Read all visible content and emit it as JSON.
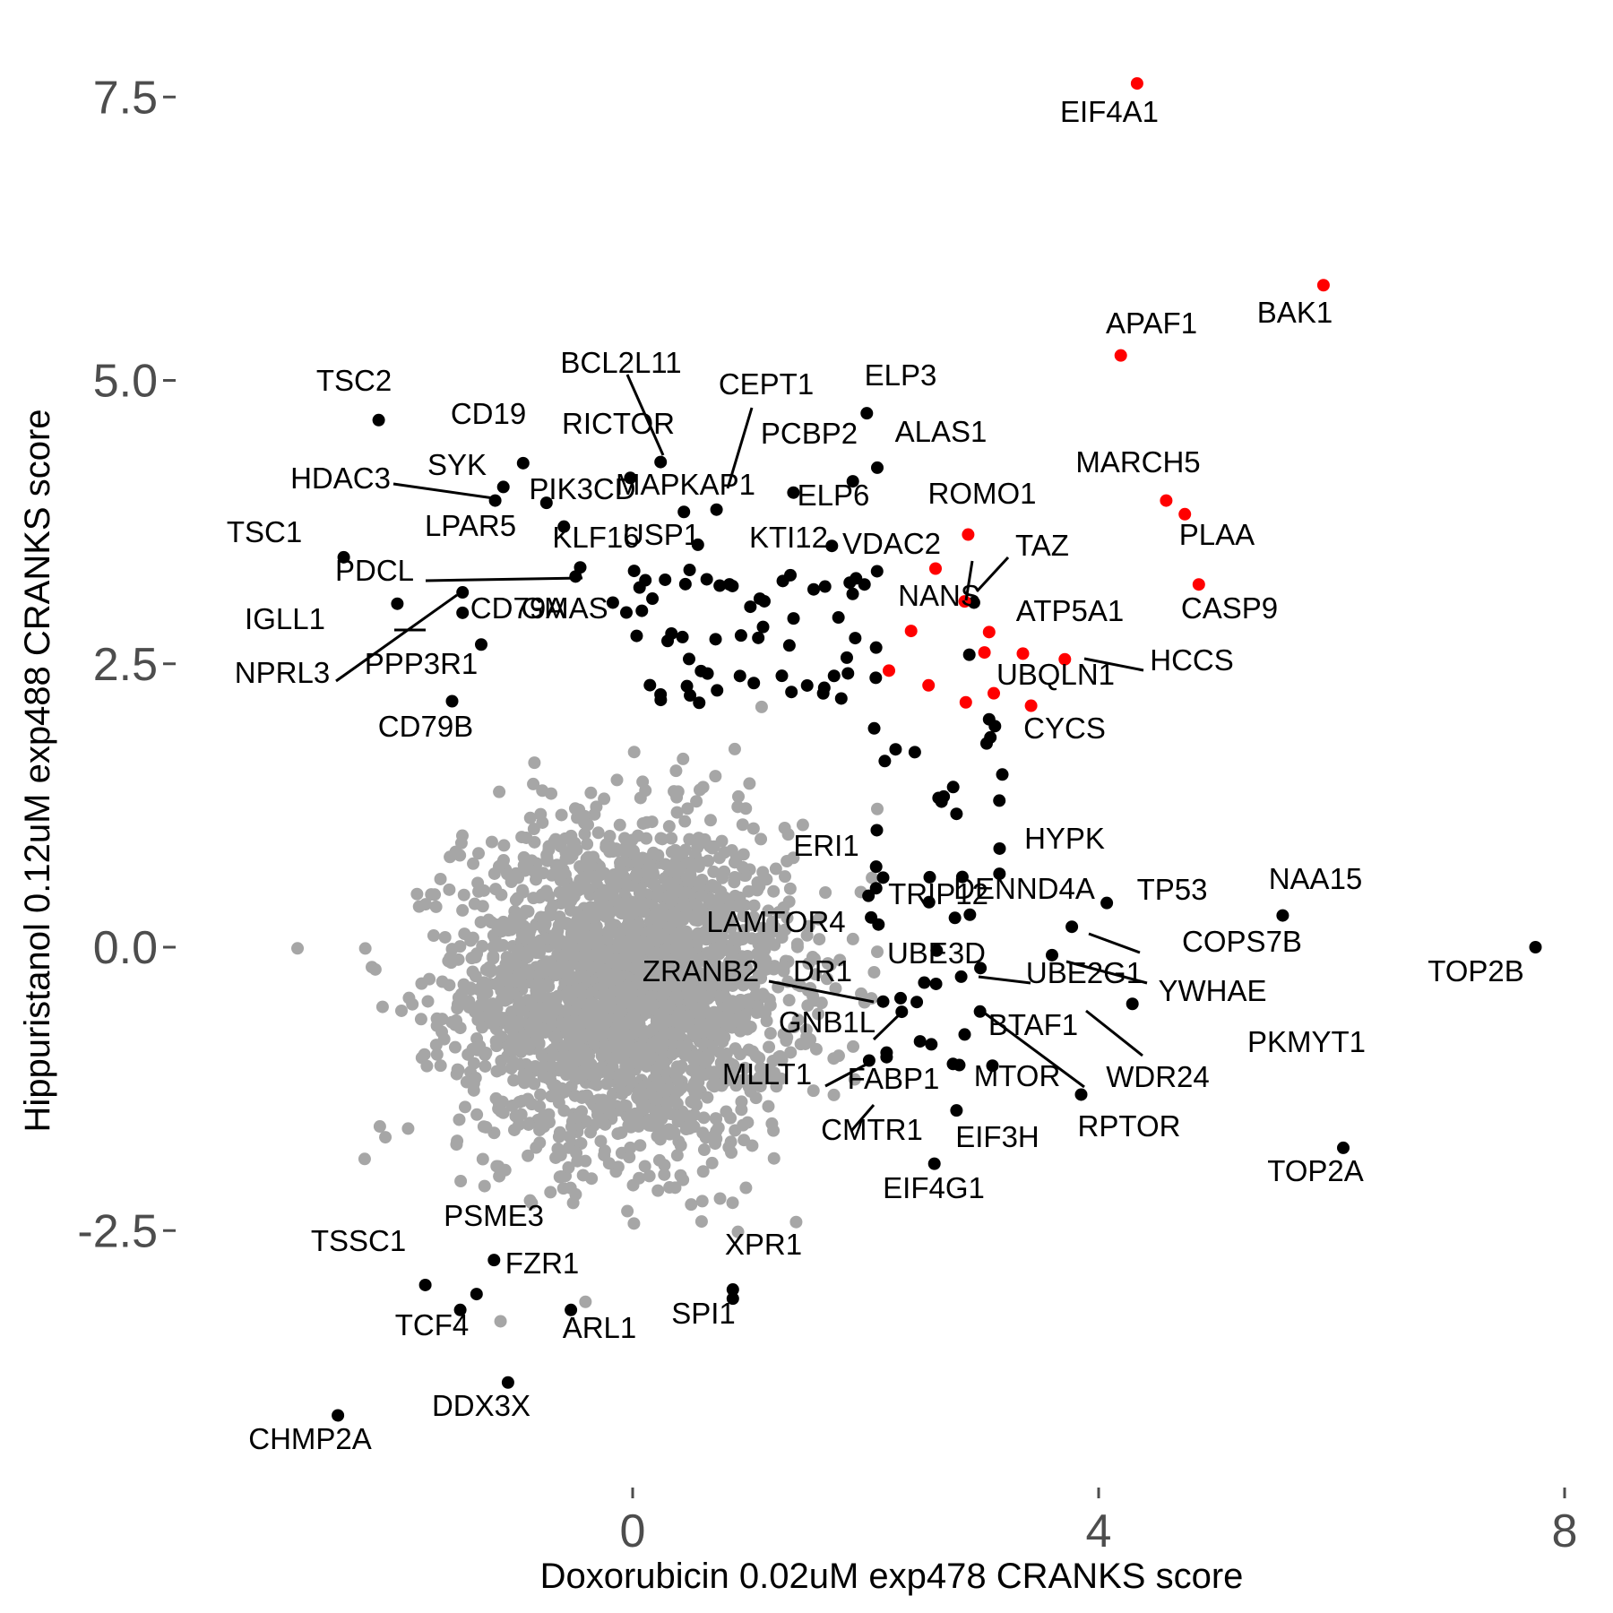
{
  "chart_data": {
    "type": "scatter",
    "title": "",
    "xlabel": "Doxorubicin 0.02uM exp478 CRANKS score",
    "ylabel": "Hippuristanol 0.12uM exp488 CRANKS score",
    "xlim": [
      -3.4,
      8.3
    ],
    "ylim": [
      -4.6,
      8.3
    ],
    "xticks": [
      0,
      4,
      8
    ],
    "xtick_labels": [
      "0",
      "4",
      "8"
    ],
    "yticks": [
      -2.5,
      0.0,
      2.5,
      5.0,
      7.5
    ],
    "ytick_labels": [
      "-2.5",
      "0.0",
      "2.5",
      "5.0",
      "7.5"
    ],
    "grid": false,
    "legend": "none",
    "colors": {
      "background": "#ffffff",
      "gray_points": "#a6a6a6",
      "black_points": "#000000",
      "red_points": "#ff0000",
      "labels": "#000000",
      "ticks": "#4d4d4d"
    },
    "red_series": [
      {
        "label": "EIF4A1",
        "x": 4.33,
        "y": 7.62
      },
      {
        "label": "BAK1",
        "x": 5.93,
        "y": 5.84
      },
      {
        "label": "APAF1",
        "x": 4.19,
        "y": 5.22
      },
      {
        "label": "MARCH5",
        "x": 4.58,
        "y": 3.94
      },
      {
        "label": "PLAA",
        "x": 4.74,
        "y": 3.82
      },
      {
        "label": "CASP9",
        "x": 4.86,
        "y": 3.2
      },
      {
        "label": "ROMO1",
        "x": 2.88,
        "y": 3.64
      },
      {
        "label": "",
        "x": 2.6,
        "y": 3.34
      },
      {
        "label": "NANS",
        "x": 2.85,
        "y": 3.05
      },
      {
        "label": "",
        "x": 2.39,
        "y": 2.79
      },
      {
        "label": "",
        "x": 3.06,
        "y": 2.78
      },
      {
        "label": "",
        "x": 3.02,
        "y": 2.6
      },
      {
        "label": "",
        "x": 3.35,
        "y": 2.59
      },
      {
        "label": "HCCS",
        "x": 3.71,
        "y": 2.54
      },
      {
        "label": "",
        "x": 2.2,
        "y": 2.44
      },
      {
        "label": "",
        "x": 2.54,
        "y": 2.31
      },
      {
        "label": "",
        "x": 3.1,
        "y": 2.24
      },
      {
        "label": "",
        "x": 2.86,
        "y": 2.16
      },
      {
        "label": "",
        "x": 3.42,
        "y": 2.13
      }
    ],
    "black_series": [
      {
        "label": "TOP2B",
        "x": 7.75,
        "y": 0.0
      },
      {
        "label": "NAA15",
        "x": 5.58,
        "y": 0.28
      },
      {
        "label": "TOP2A",
        "x": 6.1,
        "y": -1.77
      },
      {
        "label": "TP53",
        "x": 4.07,
        "y": 0.39
      },
      {
        "label": "COPS7B",
        "x": 3.77,
        "y": 0.18
      },
      {
        "label": "YWHAE",
        "x": 4.29,
        "y": -0.5
      },
      {
        "label": "PKMYT1",
        "x": 3.6,
        "y": -0.07
      },
      {
        "label": "WDR24",
        "x": 3.85,
        "y": -1.3
      },
      {
        "label": "UBE2G1",
        "x": 2.82,
        "y": -0.26
      },
      {
        "label": "BTAF1",
        "x": 2.85,
        "y": -0.77
      },
      {
        "label": "MTOR",
        "x": 2.75,
        "y": -1.03
      },
      {
        "label": "EIF3H",
        "x": 2.78,
        "y": -1.44
      },
      {
        "label": "EIF4G1",
        "x": 2.59,
        "y": -1.91
      },
      {
        "label": "CMTR1",
        "x": 2.18,
        "y": -0.97
      },
      {
        "label": "FABP1",
        "x": 2.18,
        "y": -0.93
      },
      {
        "label": "MLLT1",
        "x": 2.03,
        "y": -1.0
      },
      {
        "label": "GNB1L",
        "x": 2.31,
        "y": -0.57
      },
      {
        "label": "DR1",
        "x": 2.15,
        "y": -0.48
      },
      {
        "label": "ZRANB2",
        "x": 2.3,
        "y": -0.45
      },
      {
        "label": "UBE3D",
        "x": 2.61,
        "y": -0.03
      },
      {
        "label": "LAMTOR4",
        "x": 2.11,
        "y": 0.2
      },
      {
        "label": "TRIP12",
        "x": 2.09,
        "y": 0.52
      },
      {
        "label": "ERI1",
        "x": 2.09,
        "y": 0.71
      },
      {
        "label": "DENND4A",
        "x": 2.83,
        "y": 0.62
      },
      {
        "label": "HYPK",
        "x": 3.15,
        "y": 0.87
      },
      {
        "label": "CYCS",
        "x": 3.11,
        "y": 1.95
      },
      {
        "label": "UBQLN1",
        "x": 3.06,
        "y": 2.01
      },
      {
        "label": "ATP5A1",
        "x": 2.89,
        "y": 2.58
      },
      {
        "label": "TAZ",
        "x": 2.93,
        "y": 3.04
      },
      {
        "label": "VDAC2",
        "x": 1.99,
        "y": 3.2
      },
      {
        "label": "ELP3",
        "x": 2.01,
        "y": 4.71
      },
      {
        "label": "ALAS1",
        "x": 2.1,
        "y": 4.23
      },
      {
        "label": "ELP6",
        "x": 1.89,
        "y": 4.11
      },
      {
        "label": "KTI12",
        "x": 1.71,
        "y": 3.54
      },
      {
        "label": "PCBP2",
        "x": 1.38,
        "y": 4.01
      },
      {
        "label": "CEPT1",
        "x": 0.72,
        "y": 3.86
      },
      {
        "label": "MAPKAP1",
        "x": 0.44,
        "y": 3.84
      },
      {
        "label": "USP1",
        "x": 0.56,
        "y": 3.55
      },
      {
        "label": "BCL2L11",
        "x": 0.24,
        "y": 4.28
      },
      {
        "label": "RICTOR",
        "x": -0.02,
        "y": 4.14
      },
      {
        "label": "CD19",
        "x": -0.94,
        "y": 4.27
      },
      {
        "label": "TSC2",
        "x": -2.18,
        "y": 4.65
      },
      {
        "label": "SYK",
        "x": -1.11,
        "y": 4.06
      },
      {
        "label": "HDAC3",
        "x": -1.18,
        "y": 3.94
      },
      {
        "label": "PIK3CD",
        "x": -0.74,
        "y": 3.92
      },
      {
        "label": "KLF16",
        "x": -0.59,
        "y": 3.71
      },
      {
        "label": "LPAR5",
        "x": -0.45,
        "y": 3.35
      },
      {
        "label": "PDCL",
        "x": -0.49,
        "y": 3.27
      },
      {
        "label": "GMAS",
        "x": -0.17,
        "y": 3.04
      },
      {
        "label": "CD79A",
        "x": -1.46,
        "y": 2.95
      },
      {
        "label": "NPRL3",
        "x": -1.46,
        "y": 3.13
      },
      {
        "label": "IGLL1",
        "x": -2.02,
        "y": 3.03
      },
      {
        "label": "TSC1",
        "x": -2.48,
        "y": 3.44
      },
      {
        "label": "PPP3R1",
        "x": -1.3,
        "y": 2.67
      },
      {
        "label": "CD79B",
        "x": -1.55,
        "y": 2.17
      },
      {
        "label": "PSME3",
        "x": -1.19,
        "y": -2.76
      },
      {
        "label": "FZR1",
        "x": -1.34,
        "y": -3.06
      },
      {
        "label": "TSSC1",
        "x": -1.78,
        "y": -2.98
      },
      {
        "label": "TCF4",
        "x": -1.48,
        "y": -3.2
      },
      {
        "label": "ARL1",
        "x": -0.53,
        "y": -3.2
      },
      {
        "label": "XPR1",
        "x": 0.86,
        "y": -3.02
      },
      {
        "label": "SPI1",
        "x": 0.86,
        "y": -3.1
      },
      {
        "label": "DDX3X",
        "x": -1.07,
        "y": -3.84
      },
      {
        "label": "CHMP2A",
        "x": -2.53,
        "y": -4.13
      }
    ],
    "point_labels": [
      "EIF4A1",
      "BAK1",
      "APAF1",
      "MARCH5",
      "PLAA",
      "CASP9",
      "ROMO1",
      "TAZ",
      "NANS",
      "ATP5A1",
      "HCCS",
      "UBQLN1",
      "CYCS",
      "TSC2",
      "BCL2L11",
      "CEPT1",
      "ELP3",
      "CD19",
      "RICTOR",
      "PCBP2",
      "ALAS1",
      "HDAC3",
      "SYK",
      "PIK3CD",
      "MAPKAP1",
      "ELP6",
      "TSC1",
      "LPAR5",
      "KLF16",
      "USP1",
      "KTI12",
      "VDAC2",
      "PDCL",
      "CD79A",
      "GMAS",
      "IGLL1",
      "NPRL3",
      "PPP3R1",
      "CD79B",
      "HYPK",
      "ERI1",
      "TRIP12",
      "DENND4A",
      "TP53",
      "NAA15",
      "LAMTOR4",
      "COPS7B",
      "TOP2B",
      "UBE3D",
      "ZRANB2",
      "DR1",
      "UBE2G1",
      "YWHAE",
      "GNB1L",
      "BTAF1",
      "PKMYT1",
      "MLLT1",
      "FABP1",
      "MTOR",
      "WDR24",
      "RPTOR",
      "CMTR1",
      "EIF3H",
      "TOP2A",
      "EIF4G1",
      "PSME3",
      "TSSC1",
      "XPR1",
      "FZR1",
      "TCF4",
      "ARL1",
      "SPI1",
      "DDX3X",
      "CHMP2A"
    ]
  }
}
